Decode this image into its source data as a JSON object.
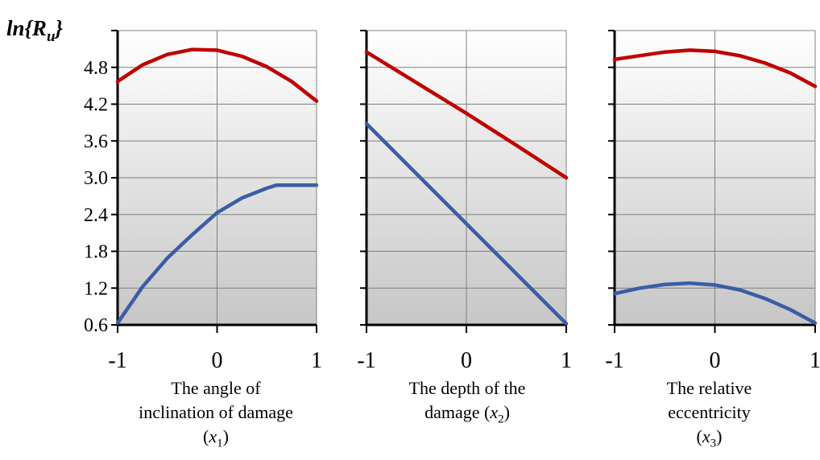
{
  "chart_data": {
    "type": "line",
    "ylabel": {
      "base": "ln{R",
      "sub": "u",
      "close": "}"
    },
    "yticks": [
      "0.6",
      "1.2",
      "1.8",
      "2.4",
      "3.0",
      "3.6",
      "4.2",
      "4.8"
    ],
    "ylim": [
      0.6,
      5.4
    ],
    "xlim": [
      -1,
      1
    ],
    "xticks": [
      "-1",
      "0",
      "1"
    ],
    "grid": true,
    "panels": [
      {
        "xlabel": {
          "lines": [
            "The angle of",
            "inclination of damage"
          ],
          "var_pre": "(",
          "var": "x",
          "var_sub": "1",
          "var_post": ")"
        },
        "series": [
          {
            "color": "#c00000",
            "x": [
              -1,
              -0.75,
              -0.5,
              -0.25,
              0,
              0.25,
              0.5,
              0.75,
              1
            ],
            "y": [
              4.57,
              4.84,
              5.01,
              5.09,
              5.08,
              4.98,
              4.81,
              4.57,
              4.25
            ]
          },
          {
            "color": "#3a5da6",
            "x": [
              -1,
              -0.75,
              -0.5,
              -0.25,
              0,
              0.25,
              0.5,
              0.6,
              0.8,
              1
            ],
            "y": [
              0.63,
              1.22,
              1.69,
              2.07,
              2.43,
              2.67,
              2.83,
              2.88,
              2.88,
              2.88
            ]
          }
        ]
      },
      {
        "xlabel": {
          "lines": [
            "The depth of the"
          ],
          "line2_pre": "damage (",
          "var": "x",
          "var_sub": "2",
          "var_post": ")"
        },
        "series": [
          {
            "color": "#c00000",
            "x": [
              -1,
              -0.5,
              0,
              0.5,
              1
            ],
            "y": [
              5.05,
              4.55,
              4.05,
              3.53,
              3.0
            ]
          },
          {
            "color": "#3a5da6",
            "x": [
              -1,
              1
            ],
            "y": [
              3.88,
              0.62
            ]
          }
        ]
      },
      {
        "xlabel": {
          "lines": [
            "The relative",
            "eccentricity"
          ],
          "var_pre": "(",
          "var": "x",
          "var_sub": "3",
          "var_post": ")"
        },
        "series": [
          {
            "color": "#c00000",
            "x": [
              -1,
              -0.75,
              -0.5,
              -0.25,
              0,
              0.25,
              0.5,
              0.75,
              1
            ],
            "y": [
              4.93,
              4.99,
              5.05,
              5.08,
              5.06,
              4.99,
              4.87,
              4.71,
              4.49
            ]
          },
          {
            "color": "#3a5da6",
            "x": [
              -1,
              -0.75,
              -0.5,
              -0.25,
              0,
              0.25,
              0.5,
              0.75,
              1
            ],
            "y": [
              1.11,
              1.2,
              1.26,
              1.28,
              1.25,
              1.17,
              1.03,
              0.85,
              0.63
            ]
          }
        ]
      }
    ]
  }
}
